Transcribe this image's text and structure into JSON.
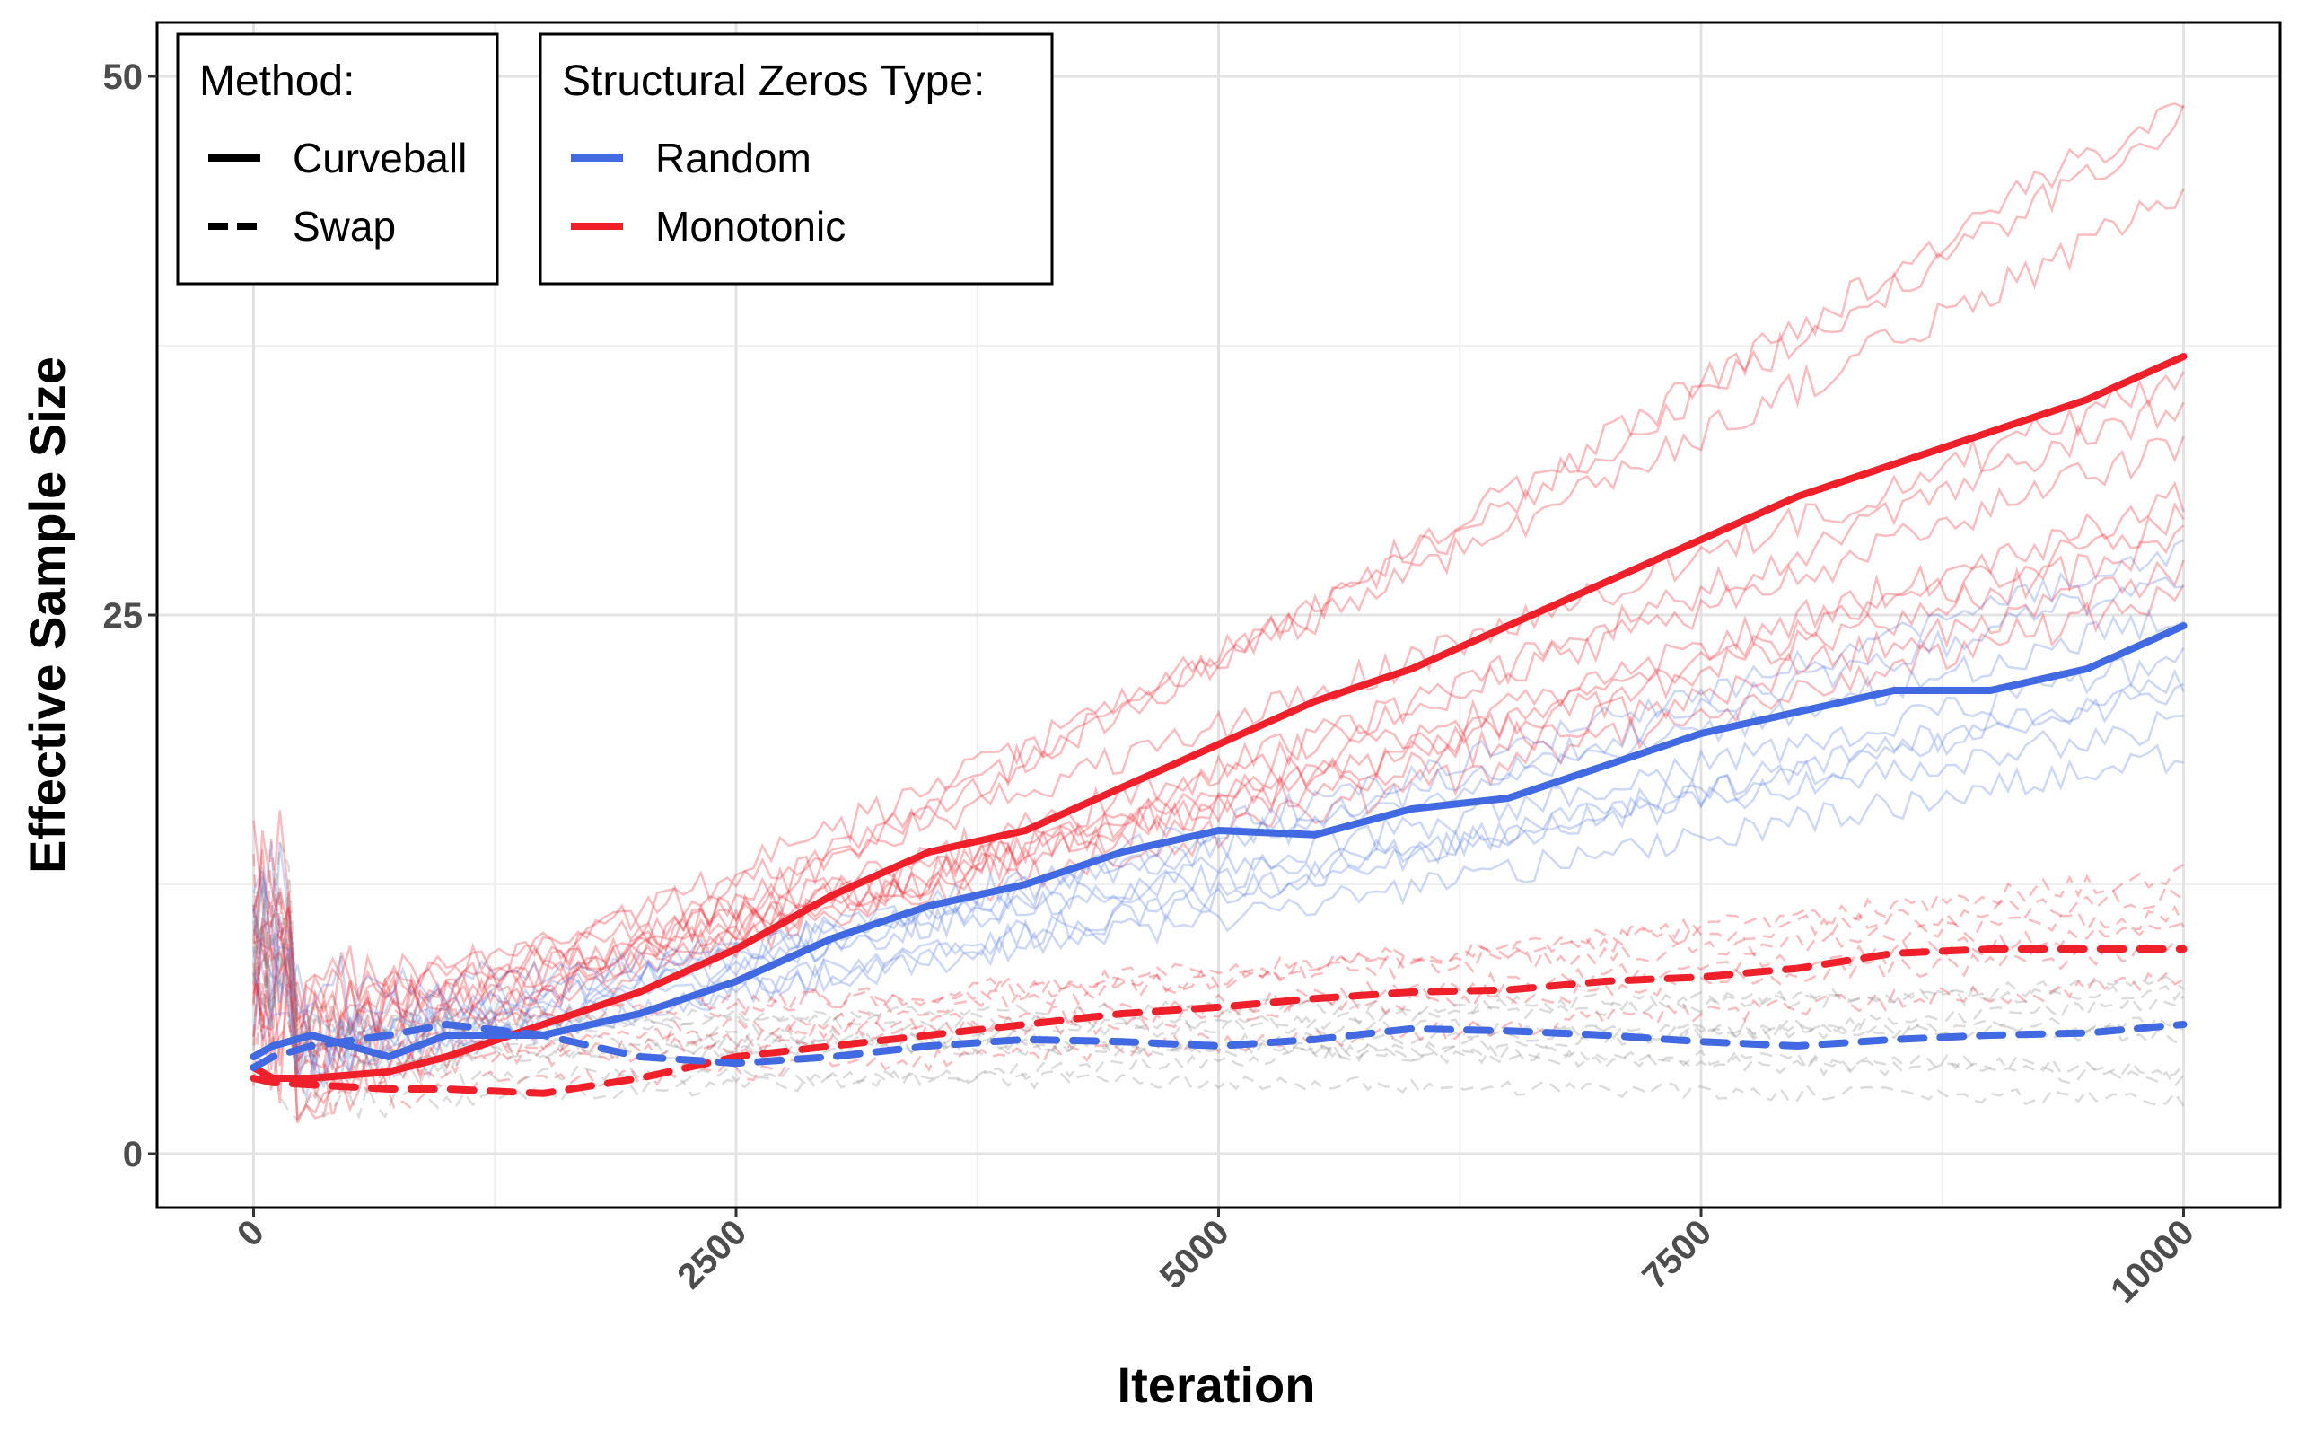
{
  "chart_data": {
    "type": "line",
    "xlabel": "Iteration",
    "ylabel": "Effective Sample Size",
    "xlim": [
      -500,
      10500
    ],
    "ylim": [
      -2.5,
      52.5
    ],
    "x_ticks": [
      0,
      2500,
      5000,
      7500,
      10000
    ],
    "x_tick_labels": [
      "0",
      "2500",
      "5000",
      "7500",
      "10000"
    ],
    "y_ticks": [
      0,
      25,
      50
    ],
    "y_tick_labels": [
      "0",
      "25",
      "50"
    ],
    "grid": true,
    "legends": [
      {
        "title": "Method:",
        "placement": "top-left",
        "entries": [
          {
            "label": "Curveball",
            "color": "#000000",
            "dash": "solid"
          },
          {
            "label": "Swap",
            "color": "#000000",
            "dash": "dashed"
          }
        ]
      },
      {
        "title": "Structural Zeros Type:",
        "placement": "top-left",
        "entries": [
          {
            "label": "Random",
            "color": "#4169e1",
            "dash": "solid"
          },
          {
            "label": "Monotonic",
            "color": "#f0202a",
            "dash": "solid"
          }
        ]
      }
    ],
    "series": [
      {
        "method": "Curveball",
        "zeros": "Monotonic",
        "color": "#f0202a",
        "dash": "solid",
        "x": [
          0,
          100,
          300,
          700,
          1000,
          1500,
          2000,
          2500,
          3000,
          3500,
          4000,
          4500,
          5000,
          5500,
          6000,
          6500,
          7000,
          7500,
          8000,
          8500,
          9000,
          9500,
          10000
        ],
        "y": [
          4,
          3.5,
          3.5,
          3.8,
          4.5,
          6,
          7.5,
          9.5,
          12,
          14,
          15,
          17,
          19,
          21,
          22.5,
          24.5,
          26.5,
          28.5,
          30.5,
          32,
          33.5,
          35,
          37
        ]
      },
      {
        "method": "Curveball",
        "zeros": "Random",
        "color": "#4169e1",
        "dash": "solid",
        "x": [
          0,
          100,
          300,
          700,
          1000,
          1500,
          2000,
          2500,
          3000,
          3500,
          4000,
          4500,
          5000,
          5500,
          6000,
          6500,
          7000,
          7500,
          8000,
          8500,
          9000,
          9500,
          10000
        ],
        "y": [
          4.5,
          5,
          5.5,
          4.5,
          5.5,
          5.5,
          6.5,
          8,
          10,
          11.5,
          12.5,
          14,
          15,
          14.8,
          16,
          16.5,
          18,
          19.5,
          20.5,
          21.5,
          21.5,
          22.5,
          24.5
        ]
      },
      {
        "method": "Swap",
        "zeros": "Monotonic",
        "color": "#f0202a",
        "dash": "dashed",
        "x": [
          0,
          100,
          300,
          700,
          1000,
          1500,
          2000,
          2500,
          3000,
          3500,
          4000,
          4500,
          5000,
          5500,
          6000,
          6500,
          7000,
          7500,
          8000,
          8500,
          9000,
          9500,
          10000
        ],
        "y": [
          3.5,
          3.3,
          3.2,
          3,
          3,
          2.8,
          3.5,
          4.5,
          5,
          5.5,
          6,
          6.5,
          6.8,
          7.2,
          7.5,
          7.6,
          8,
          8.2,
          8.6,
          9.3,
          9.5,
          9.5,
          9.5
        ]
      },
      {
        "method": "Swap",
        "zeros": "Random",
        "color": "#4169e1",
        "dash": "dashed",
        "x": [
          0,
          100,
          300,
          700,
          1000,
          1500,
          2000,
          2500,
          3000,
          3500,
          4000,
          4500,
          5000,
          5500,
          6000,
          6500,
          7000,
          7500,
          8000,
          8500,
          9000,
          9500,
          10000
        ],
        "y": [
          4,
          4.5,
          5,
          5.5,
          6,
          5.5,
          4.5,
          4.2,
          4.5,
          5,
          5.3,
          5.2,
          5,
          5.3,
          5.8,
          5.7,
          5.5,
          5.2,
          5,
          5.3,
          5.5,
          5.6,
          6
        ]
      }
    ],
    "individual_runs": {
      "opacity": 0.3,
      "note_visible": false,
      "curveball_monotonic_final": [
        49,
        48,
        44.5,
        36,
        35,
        33,
        30.5,
        29.5,
        28.5,
        27,
        26
      ],
      "curveball_random_final": [
        28,
        27,
        25,
        23,
        22,
        21.5,
        20,
        18.5
      ],
      "swap_monotonic_final": [
        13,
        12,
        11,
        10.5,
        9.5,
        8
      ],
      "swap_random_final": [
        8,
        7.5,
        7,
        6,
        5.5,
        4,
        3.5,
        2.5
      ]
    }
  }
}
